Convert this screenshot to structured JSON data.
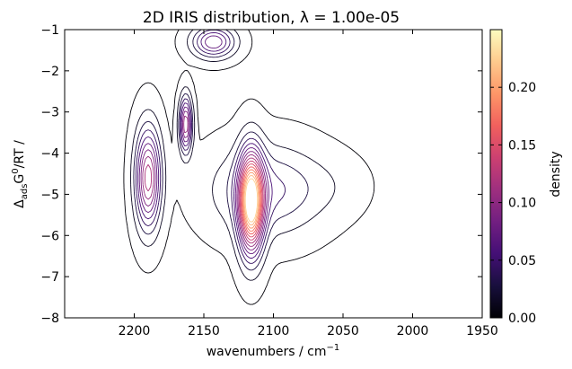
{
  "chart_data": {
    "type": "contour",
    "title": "2D IRIS distribution, λ = 1.00e-05",
    "xlabel": {
      "main": "wavenumbers / cm",
      "sup": "−1"
    },
    "ylabel": {
      "pre": "Δ",
      "sub": "ads",
      "mid": "G",
      "sup": "0",
      "post": "/RT /"
    },
    "xlim": [
      2250,
      1950
    ],
    "ylim": [
      -8,
      -1
    ],
    "x_ticks": [
      2200,
      2150,
      2100,
      2050,
      2000,
      1950
    ],
    "x_tick_labels": [
      "2200",
      "2150",
      "2100",
      "2050",
      "2000",
      "1950"
    ],
    "y_ticks": [
      -8,
      -7,
      -6,
      -5,
      -4,
      -3,
      -2,
      -1
    ],
    "y_tick_labels": [
      "−8",
      "−7",
      "−6",
      "−5",
      "−4",
      "−3",
      "−2",
      "−1"
    ],
    "colorbar": {
      "label": "density",
      "range": [
        0,
        0.25
      ],
      "ticks": [
        0,
        0.05,
        0.1,
        0.15,
        0.2
      ],
      "tick_labels": [
        "0.00",
        "0.05",
        "0.10",
        "0.15",
        "0.20"
      ],
      "colormap": [
        "#000004",
        "#180f3d",
        "#440f76",
        "#721f81",
        "#9e2f7f",
        "#cd4071",
        "#f1605d",
        "#fd9668",
        "#feca8d",
        "#fcfdbf"
      ]
    },
    "peaks": [
      {
        "x": 2116,
        "y": -5.2,
        "height": 0.24,
        "sx": 6,
        "sy": 0.8
      },
      {
        "x": 2190,
        "y": -4.6,
        "height": 0.13,
        "sx": 6,
        "sy": 0.8
      },
      {
        "x": 2163,
        "y": -3.3,
        "height": 0.12,
        "sx": 3,
        "sy": 0.45
      },
      {
        "x": 2143,
        "y": -1.3,
        "height": 0.09,
        "sx": 10,
        "sy": 0.25
      },
      {
        "x": 2105,
        "y": -4.9,
        "height": 0.05,
        "sx": 25,
        "sy": 0.7
      },
      {
        "x": 2060,
        "y": -4.8,
        "height": 0.008,
        "sx": 18,
        "sy": 0.5
      }
    ],
    "contour_levels": [
      0.002,
      0.015,
      0.03,
      0.045,
      0.06,
      0.075,
      0.09,
      0.105,
      0.12,
      0.135,
      0.15,
      0.165,
      0.18,
      0.195,
      0.21,
      0.225
    ]
  }
}
